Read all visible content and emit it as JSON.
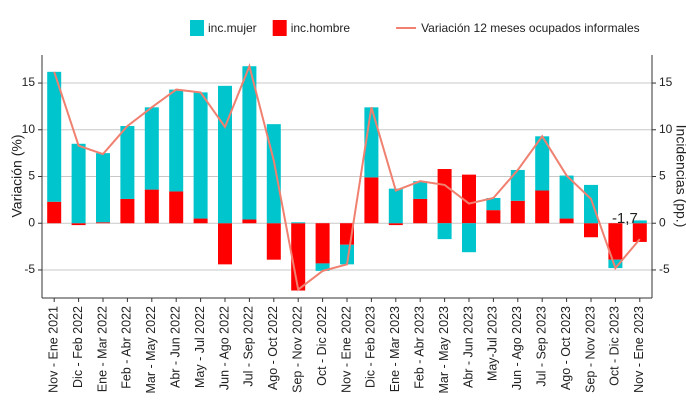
{
  "chart_data": {
    "type": "bar",
    "stacked": true,
    "categories": [
      "Nov - Ene 2021",
      "Dic - Feb 2022",
      "Ene - Mar 2022",
      "Feb - Abr 2022",
      "Mar - May 2022",
      "Abr - Jun 2022",
      "May - Jul 2022",
      "Jun - Ago 2022",
      "Jul - Sep 2022",
      "Ago - Oct 2022",
      "Sep - Nov 2022",
      "Oct - Dic 2022",
      "Nov - Ene 2022",
      "Dic - Feb 2023",
      "Ene - Mar 2023",
      "Feb - Abr 2023",
      "Mar - May 2023",
      "Abr - Jun 2023",
      "May-Jul 2023",
      "Jun - Ago 2023",
      "Jul - Sep 2023",
      "Ago - Oct 2023",
      "Sep - Nov 2023",
      "Oct - Dic 2023",
      "Nov - Ene 2023"
    ],
    "series": [
      {
        "name": "inc.mujer",
        "type": "bar",
        "color": "#00c5cd",
        "values": [
          13.9,
          8.5,
          7.4,
          7.8,
          8.8,
          10.9,
          13.5,
          14.7,
          16.4,
          10.6,
          0.1,
          -0.8,
          -2.1,
          7.5,
          3.7,
          1.9,
          -1.7,
          -3.1,
          1.3,
          3.3,
          5.8,
          4.6,
          4.1,
          -0.9,
          0.3
        ]
      },
      {
        "name": "inc.hombre",
        "type": "bar",
        "color": "#ff0000",
        "values": [
          2.3,
          -0.2,
          0.1,
          2.6,
          3.6,
          3.4,
          0.5,
          -4.4,
          0.4,
          -3.9,
          -7.2,
          -4.3,
          -2.3,
          4.9,
          -0.2,
          2.6,
          5.8,
          5.2,
          1.4,
          2.4,
          3.5,
          0.5,
          -1.5,
          -3.9,
          -2.0
        ]
      },
      {
        "name": "Variación 12 meses ocupados informales",
        "type": "line",
        "color": "#f08070",
        "values": [
          16.2,
          8.3,
          7.4,
          10.4,
          12.4,
          14.3,
          14.0,
          10.3,
          16.8,
          6.7,
          -7.1,
          -5.1,
          -4.4,
          12.4,
          3.5,
          4.5,
          4.1,
          2.1,
          2.7,
          5.7,
          9.3,
          5.1,
          2.6,
          -4.8,
          -1.7
        ],
        "value_labels": [
          null,
          null,
          null,
          null,
          null,
          null,
          null,
          null,
          null,
          null,
          null,
          null,
          null,
          null,
          null,
          null,
          null,
          null,
          null,
          null,
          null,
          null,
          null,
          null,
          "-1,7"
        ]
      }
    ],
    "y_label": "Variación (%)",
    "y2_label": "Incidencias (pp.)",
    "ylim": [
      -8,
      18
    ],
    "yticks": [
      -5,
      0,
      5,
      10,
      15
    ],
    "y2lim": [
      -8,
      18
    ],
    "y2ticks": [
      -5,
      0,
      5,
      10,
      15
    ],
    "grid": true,
    "legend": "top"
  }
}
